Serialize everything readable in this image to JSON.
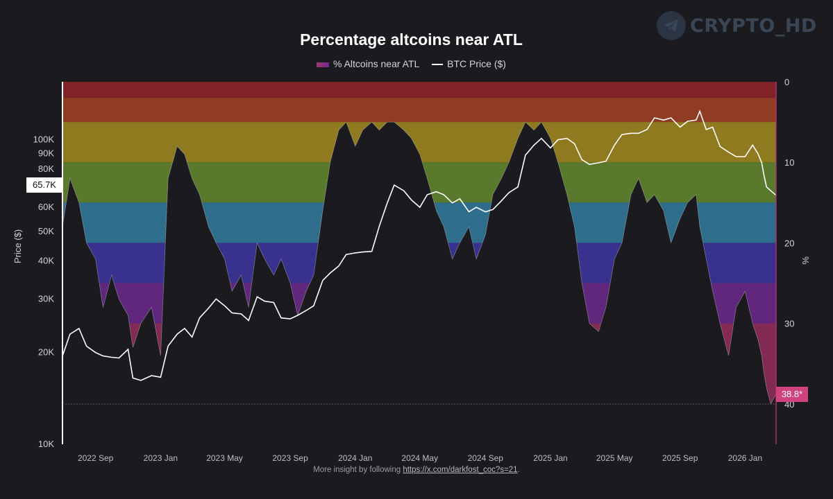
{
  "watermark": {
    "text": "CRYPTO_HD",
    "icon": "telegram-icon"
  },
  "footer": {
    "prefix": "More insight by following",
    "link": "https://x.com/darkfost_coc?s=21",
    "suffix": "."
  },
  "chart_data": {
    "type": "line",
    "title": "Percentage altcoins near ATL",
    "legend": [
      {
        "label": "% Altcoins near ATL",
        "color": "#a4356e"
      },
      {
        "label": "BTC Price ($)",
        "color": "#ffffff"
      }
    ],
    "legend_position": "top-center",
    "ylabel_left": "Price ($)",
    "ylabel_right": "%",
    "y_left_scale": "log",
    "y_left_ticks": [
      "10K",
      "20K",
      "30K",
      "40K",
      "50K",
      "60K",
      "70K",
      "80K",
      "90K",
      "100K"
    ],
    "y_left_tick_values": [
      10000,
      20000,
      30000,
      40000,
      50000,
      60000,
      70000,
      80000,
      90000,
      100000
    ],
    "ylim_left": [
      10000,
      155000
    ],
    "y_right_ticks": [
      "0",
      "10",
      "20",
      "30",
      "40"
    ],
    "y_right_tick_values": [
      0,
      10,
      20,
      30,
      40
    ],
    "ylim_right": [
      0,
      45
    ],
    "y_right_inverted": true,
    "x_tick_labels": [
      "2022 Sep",
      "2023 Jan",
      "2023 May",
      "2023 Sep",
      "2024 Jan",
      "2024 May",
      "2024 Sep",
      "2025 Jan",
      "2025 May",
      "2025 Sep",
      "2026 Jan"
    ],
    "x_tick_dates": [
      "2022-09-01",
      "2023-01-01",
      "2023-05-01",
      "2023-09-01",
      "2024-01-01",
      "2024-05-01",
      "2024-09-01",
      "2025-01-01",
      "2025-05-01",
      "2025-09-01",
      "2026-01-01"
    ],
    "x_range": [
      "2022-07-01",
      "2026-02-28"
    ],
    "bands": [
      {
        "from": 0,
        "to": 2,
        "color": "#c0272d"
      },
      {
        "from": 2,
        "to": 5,
        "color": "#d8502a"
      },
      {
        "from": 5,
        "to": 10,
        "color": "#d7b420"
      },
      {
        "from": 10,
        "to": 15,
        "color": "#7fb536"
      },
      {
        "from": 15,
        "to": 20,
        "color": "#3b9fd0"
      },
      {
        "from": 20,
        "to": 25,
        "color": "#4b3fd4"
      },
      {
        "from": 25,
        "to": 30,
        "color": "#8a2fb8"
      },
      {
        "from": 30,
        "to": 40,
        "color": "#c23475"
      }
    ],
    "current_price_label": "65.7K",
    "current_pct_label": "38.8*",
    "series": [
      {
        "name": "BTC Price ($)",
        "x": [
          "2022-07-01",
          "2022-07-15",
          "2022-08-01",
          "2022-08-15",
          "2022-09-01",
          "2022-09-15",
          "2022-10-01",
          "2022-10-15",
          "2022-11-01",
          "2022-11-10",
          "2022-11-25",
          "2022-12-15",
          "2023-01-01",
          "2023-01-15",
          "2023-02-01",
          "2023-02-15",
          "2023-03-01",
          "2023-03-15",
          "2023-04-01",
          "2023-04-15",
          "2023-05-01",
          "2023-05-15",
          "2023-06-01",
          "2023-06-15",
          "2023-07-01",
          "2023-07-15",
          "2023-08-01",
          "2023-08-15",
          "2023-09-01",
          "2023-09-15",
          "2023-10-01",
          "2023-10-15",
          "2023-11-01",
          "2023-11-15",
          "2023-12-01",
          "2023-12-15",
          "2024-01-01",
          "2024-01-15",
          "2024-02-01",
          "2024-02-15",
          "2024-03-01",
          "2024-03-14",
          "2024-04-01",
          "2024-04-15",
          "2024-05-01",
          "2024-05-15",
          "2024-06-01",
          "2024-06-15",
          "2024-07-01",
          "2024-07-15",
          "2024-08-01",
          "2024-08-15",
          "2024-09-01",
          "2024-09-15",
          "2024-10-01",
          "2024-10-15",
          "2024-11-01",
          "2024-11-15",
          "2024-12-01",
          "2024-12-15",
          "2025-01-01",
          "2025-01-15",
          "2025-02-01",
          "2025-02-15",
          "2025-03-01",
          "2025-03-15",
          "2025-04-01",
          "2025-04-15",
          "2025-05-01",
          "2025-05-15",
          "2025-06-01",
          "2025-06-15",
          "2025-07-01",
          "2025-07-15",
          "2025-08-01",
          "2025-08-15",
          "2025-09-01",
          "2025-09-15",
          "2025-10-01",
          "2025-10-08",
          "2025-10-20",
          "2025-11-01",
          "2025-11-15",
          "2025-12-01",
          "2025-12-15",
          "2026-01-01",
          "2026-01-15",
          "2026-01-25",
          "2026-02-01",
          "2026-02-05",
          "2026-02-10",
          "2026-02-18",
          "2026-02-28"
        ],
        "values": [
          19500,
          23000,
          24000,
          21000,
          20000,
          19500,
          19300,
          19200,
          20500,
          16500,
          16200,
          16800,
          16600,
          21000,
          23000,
          24000,
          22500,
          26000,
          28000,
          30000,
          28500,
          27000,
          26800,
          25500,
          30500,
          29500,
          29200,
          26000,
          25800,
          26500,
          27500,
          28500,
          34500,
          36500,
          38500,
          42000,
          42500,
          42800,
          43000,
          52000,
          62000,
          71000,
          68000,
          63500,
          60000,
          66000,
          67500,
          66000,
          62000,
          64000,
          58000,
          60000,
          58000,
          59000,
          63000,
          67000,
          70000,
          89000,
          96000,
          101000,
          94000,
          100000,
          101000,
          97000,
          86000,
          83000,
          84000,
          85000,
          96000,
          104000,
          105000,
          105000,
          108000,
          118000,
          116000,
          118000,
          110000,
          115000,
          116000,
          124000,
          108000,
          110000,
          95000,
          91000,
          88000,
          88000,
          96000,
          90000,
          84000,
          77000,
          70000,
          68000,
          65700
        ]
      },
      {
        "name": "% Altcoins near ATL",
        "x": [
          "2022-07-01",
          "2022-07-15",
          "2022-08-01",
          "2022-08-15",
          "2022-09-01",
          "2022-09-15",
          "2022-10-01",
          "2022-10-15",
          "2022-11-01",
          "2022-11-10",
          "2022-11-25",
          "2022-12-15",
          "2023-01-01",
          "2023-01-15",
          "2023-02-01",
          "2023-02-15",
          "2023-03-01",
          "2023-03-15",
          "2023-04-01",
          "2023-04-15",
          "2023-05-01",
          "2023-05-15",
          "2023-06-01",
          "2023-06-15",
          "2023-07-01",
          "2023-07-15",
          "2023-08-01",
          "2023-08-15",
          "2023-09-01",
          "2023-09-15",
          "2023-10-01",
          "2023-10-15",
          "2023-11-01",
          "2023-11-15",
          "2023-12-01",
          "2023-12-15",
          "2024-01-01",
          "2024-01-15",
          "2024-02-01",
          "2024-02-15",
          "2024-03-01",
          "2024-03-14",
          "2024-04-01",
          "2024-04-15",
          "2024-05-01",
          "2024-05-15",
          "2024-06-01",
          "2024-06-15",
          "2024-07-01",
          "2024-07-15",
          "2024-08-01",
          "2024-08-15",
          "2024-09-01",
          "2024-09-15",
          "2024-10-01",
          "2024-10-15",
          "2024-11-01",
          "2024-11-15",
          "2024-12-01",
          "2024-12-15",
          "2025-01-01",
          "2025-01-15",
          "2025-02-01",
          "2025-02-15",
          "2025-03-01",
          "2025-03-15",
          "2025-04-01",
          "2025-04-15",
          "2025-05-01",
          "2025-05-15",
          "2025-06-01",
          "2025-06-15",
          "2025-07-01",
          "2025-07-15",
          "2025-08-01",
          "2025-08-15",
          "2025-09-01",
          "2025-09-15",
          "2025-10-01",
          "2025-10-08",
          "2025-10-20",
          "2025-11-01",
          "2025-11-15",
          "2025-12-01",
          "2025-12-15",
          "2026-01-01",
          "2026-01-15",
          "2026-01-25",
          "2026-02-01",
          "2026-02-05",
          "2026-02-10",
          "2026-02-18",
          "2026-02-28"
        ],
        "values": [
          18,
          12,
          15,
          20,
          22,
          28,
          24,
          27,
          29,
          33,
          30,
          28,
          34,
          12,
          8,
          9,
          12,
          14,
          18,
          20,
          22,
          26,
          24,
          28,
          20,
          22,
          24,
          22,
          25,
          29,
          26,
          24,
          16,
          10,
          6,
          5,
          8,
          6,
          5,
          6,
          5,
          5,
          6,
          7,
          9,
          12,
          16,
          18,
          22,
          20,
          18,
          22,
          19,
          14,
          12,
          10,
          7,
          5,
          6,
          5,
          7,
          10,
          14,
          18,
          25,
          30,
          31,
          28,
          22,
          20,
          14,
          12,
          15,
          14,
          16,
          20,
          17,
          15,
          14,
          18,
          22,
          26,
          30,
          34,
          28,
          26,
          30,
          32,
          34,
          36,
          38,
          40,
          38.8
        ]
      }
    ]
  }
}
